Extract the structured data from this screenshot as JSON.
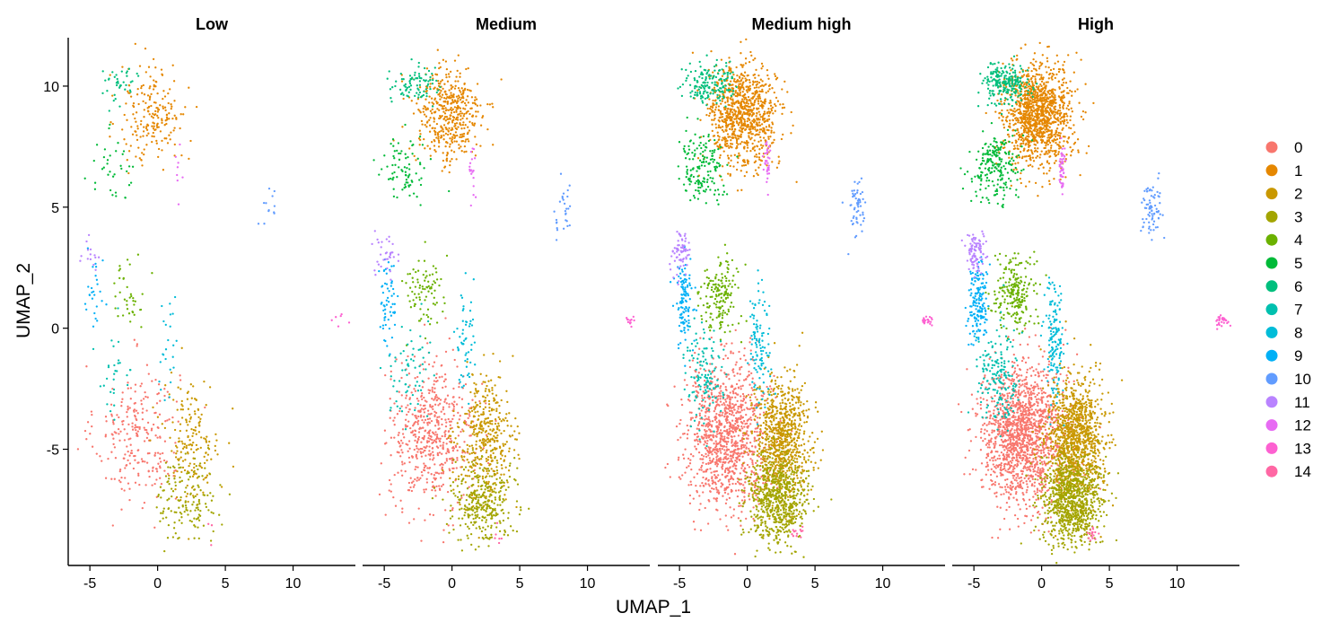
{
  "chart_data": {
    "type": "scatter",
    "xlabel": "UMAP_1",
    "ylabel": "UMAP_2",
    "xlim": [
      -6.6,
      14.6
    ],
    "ylim": [
      -9.8,
      12.0
    ],
    "x_ticks": [
      -5,
      0,
      5,
      10
    ],
    "y_ticks": [
      -5,
      0,
      5,
      10
    ],
    "x_tick_labels": [
      "-5",
      "0",
      "5",
      "10"
    ],
    "y_tick_labels": [
      "-5",
      "0",
      "5",
      "10"
    ],
    "grid": false,
    "legend_position": "right",
    "legend": [
      "0",
      "1",
      "2",
      "3",
      "4",
      "5",
      "6",
      "7",
      "8",
      "9",
      "10",
      "11",
      "12",
      "13",
      "14"
    ],
    "colors": [
      "#F8766D",
      "#E58700",
      "#C99800",
      "#A3A500",
      "#6BB100",
      "#00BA38",
      "#00BF7D",
      "#00C0AF",
      "#00BCD8",
      "#00B0F6",
      "#619CFF",
      "#B983FF",
      "#E76BF3",
      "#FD61D1",
      "#FF67A4"
    ],
    "panels": [
      {
        "title": "Low",
        "density": 0.22
      },
      {
        "title": "Medium",
        "density": 0.5
      },
      {
        "title": "Medium high",
        "density": 1.0
      },
      {
        "title": "High",
        "density": 1.35
      }
    ],
    "clusters": [
      {
        "cluster": "0",
        "cx": -1.5,
        "cy": -4.4,
        "sx": 1.55,
        "sy": 1.45,
        "n": 1100
      },
      {
        "cluster": "1",
        "cx": -0.3,
        "cy": 8.8,
        "sx": 1.25,
        "sy": 1.05,
        "n": 900
      },
      {
        "cluster": "2",
        "cx": 2.5,
        "cy": -4.6,
        "sx": 1.05,
        "sy": 1.25,
        "n": 800
      },
      {
        "cluster": "3",
        "cx": 2.2,
        "cy": -7.1,
        "sx": 1.1,
        "sy": 0.85,
        "n": 650
      },
      {
        "cluster": "4",
        "cx": -2.1,
        "cy": 1.5,
        "sx": 0.75,
        "sy": 0.75,
        "n": 170
      },
      {
        "cluster": "5",
        "cx": -3.4,
        "cy": 6.6,
        "sx": 0.85,
        "sy": 0.7,
        "n": 160
      },
      {
        "cluster": "6",
        "cx": -2.7,
        "cy": 10.1,
        "sx": 0.9,
        "sy": 0.4,
        "n": 170
      },
      {
        "cluster": "7",
        "cx": -3.2,
        "cy": -2.0,
        "sx": 0.75,
        "sy": 1.0,
        "n": 130
      },
      {
        "cluster": "8",
        "cx": 0.9,
        "cy": -0.6,
        "sx": 0.35,
        "sy": 1.2,
        "n": 110
      },
      {
        "cluster": "9",
        "cx": -4.7,
        "cy": 1.1,
        "sx": 0.35,
        "sy": 0.9,
        "n": 120
      },
      {
        "cluster": "10",
        "cx": 8.1,
        "cy": 5.0,
        "sx": 0.35,
        "sy": 0.6,
        "n": 55
      },
      {
        "cluster": "11",
        "cx": -4.9,
        "cy": 3.1,
        "sx": 0.4,
        "sy": 0.45,
        "n": 65
      },
      {
        "cluster": "12",
        "cx": 1.5,
        "cy": 6.6,
        "sx": 0.12,
        "sy": 0.55,
        "n": 35
      },
      {
        "cluster": "13",
        "cx": 13.3,
        "cy": 0.3,
        "sx": 0.3,
        "sy": 0.12,
        "n": 25
      },
      {
        "cluster": "14",
        "cx": 3.6,
        "cy": -8.5,
        "sx": 0.2,
        "sy": 0.2,
        "n": 12
      }
    ]
  }
}
